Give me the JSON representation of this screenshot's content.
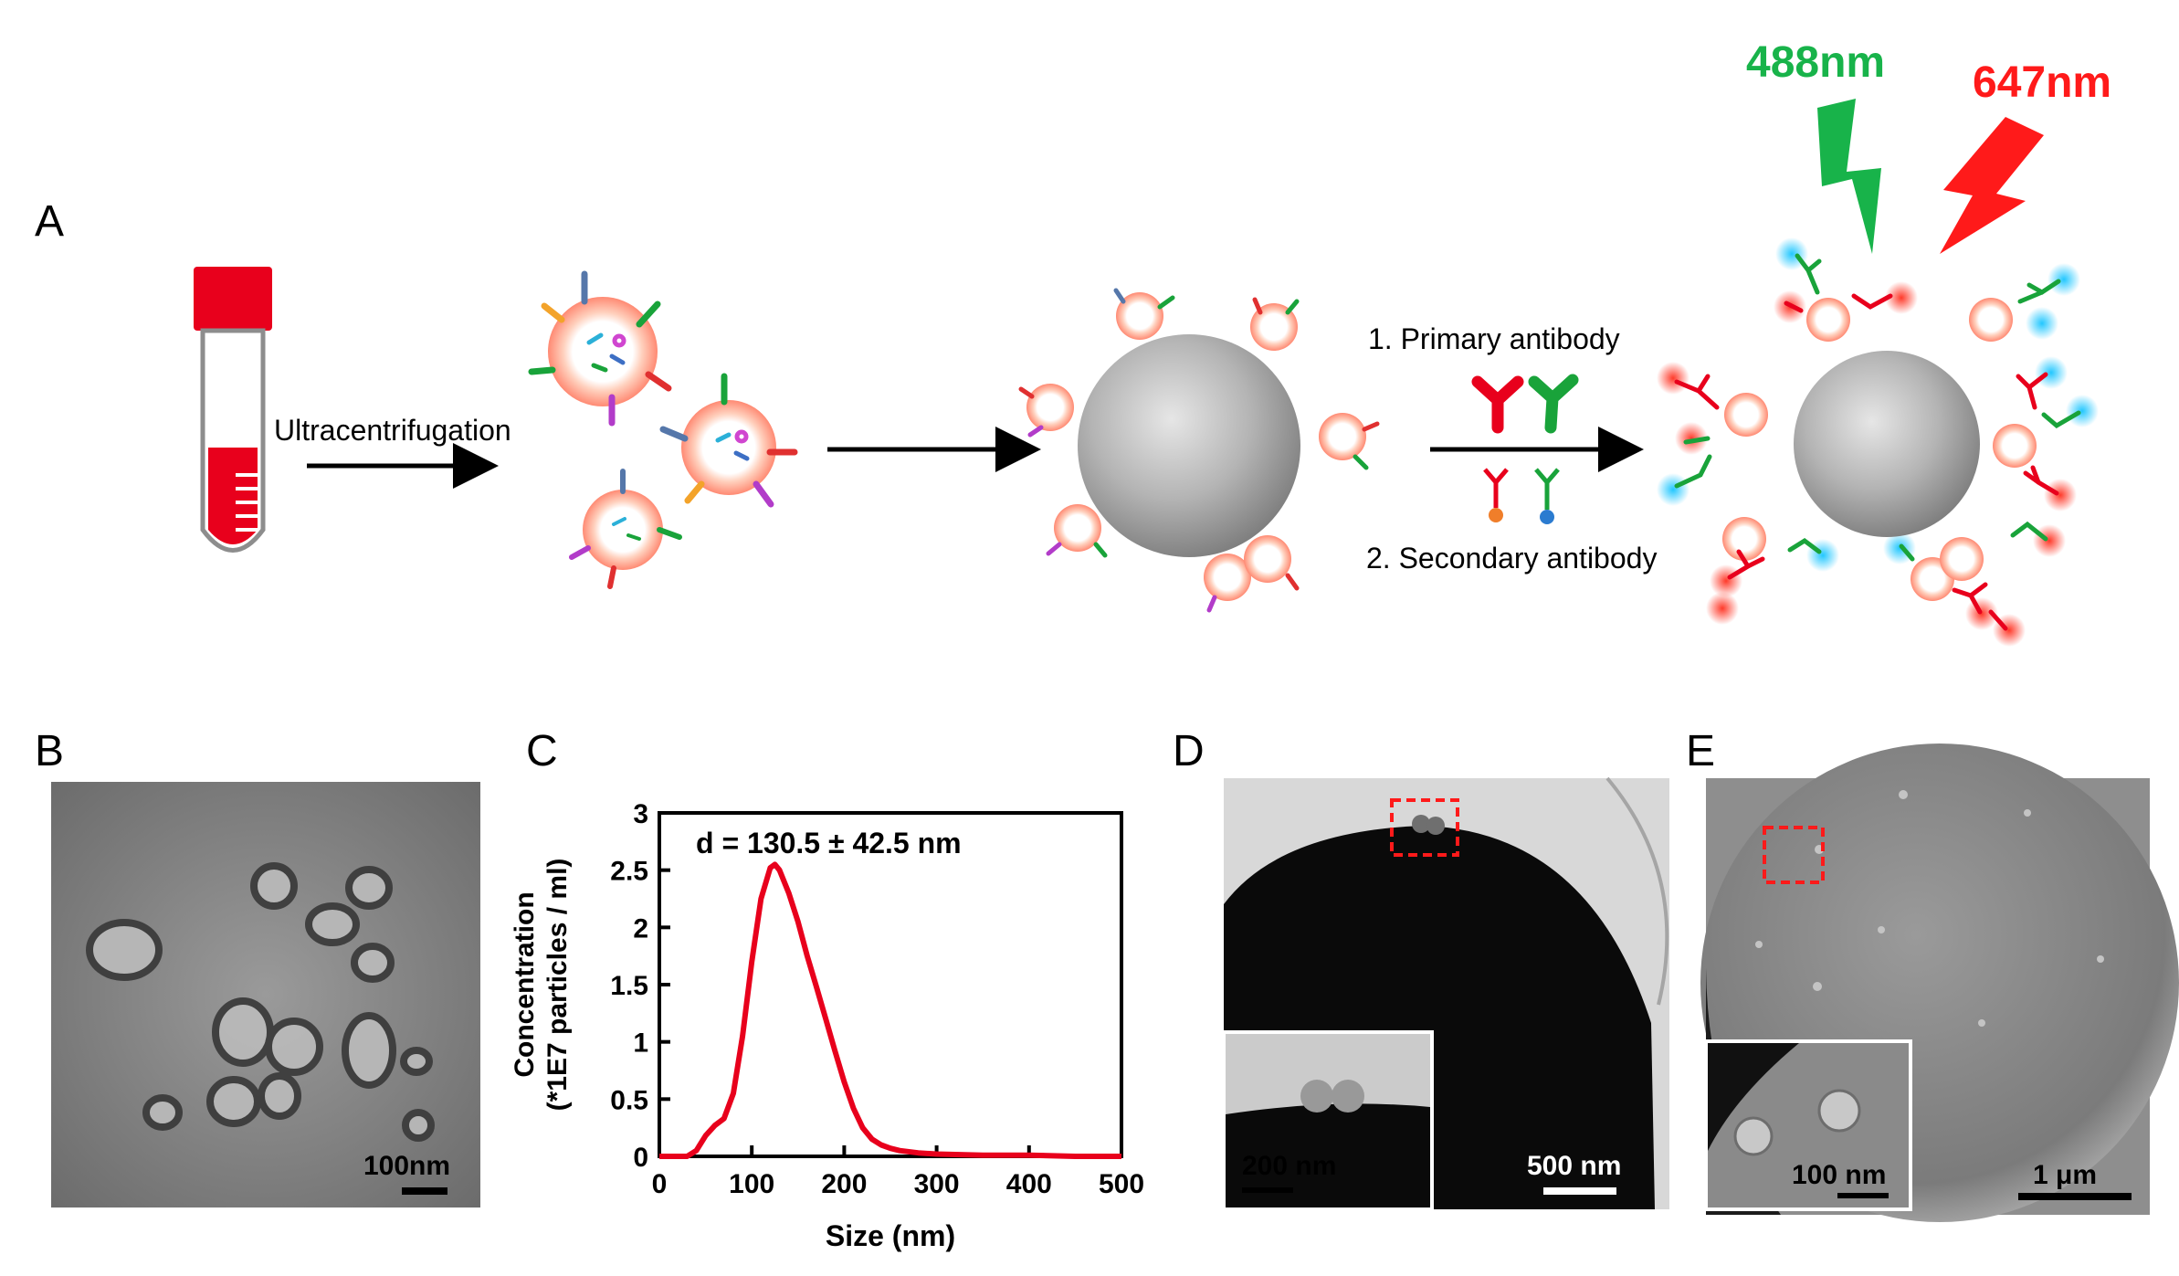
{
  "panels": {
    "A": {
      "letter": "A",
      "step1_label": "Ultracentrifugation",
      "step3_label_1": "1. Primary antibody",
      "step3_label_2": "2. Secondary antibody",
      "laser_green": "488nm",
      "laser_red": "647nm",
      "colors": {
        "tube_cap": "#e8001c",
        "blood": "#e8001c",
        "green_laser": "#18b34a",
        "red_laser": "#ff1a1a",
        "bead": "#a9a9a9"
      }
    },
    "B": {
      "letter": "B",
      "scale_bar": "100nm"
    },
    "C": {
      "letter": "C"
    },
    "D": {
      "letter": "D",
      "inset_scale": "200 nm",
      "main_scale": "500 nm"
    },
    "E": {
      "letter": "E",
      "inset_scale": "100 nm",
      "main_scale": "1 μm"
    }
  },
  "chart_data": {
    "type": "line",
    "annotation": "d = 130.5 ± 42.5 nm",
    "xlabel": "Size (nm)",
    "ylabel_line1": "Concentration",
    "ylabel_line2": "(*1E7 particles / ml)",
    "xlim": [
      0,
      500
    ],
    "ylim": [
      0,
      3
    ],
    "xticks": [
      0,
      100,
      200,
      300,
      400,
      500
    ],
    "yticks": [
      0,
      0.5,
      1,
      1.5,
      2,
      2.5,
      3
    ],
    "ytick_labels": [
      "0",
      "0.5",
      "1",
      "1.5",
      "2",
      "2.5",
      "3"
    ],
    "line_color": "#e8001c",
    "series": [
      {
        "x": [
          0,
          30,
          40,
          50,
          60,
          70,
          80,
          90,
          100,
          110,
          120,
          125,
          130,
          140,
          150,
          160,
          170,
          180,
          190,
          200,
          210,
          220,
          230,
          240,
          250,
          260,
          280,
          300,
          350,
          400,
          450,
          500
        ],
        "y": [
          0,
          0,
          0.05,
          0.18,
          0.27,
          0.33,
          0.55,
          1.05,
          1.7,
          2.25,
          2.52,
          2.55,
          2.5,
          2.3,
          2.05,
          1.75,
          1.48,
          1.2,
          0.92,
          0.65,
          0.42,
          0.25,
          0.15,
          0.1,
          0.07,
          0.05,
          0.03,
          0.02,
          0.01,
          0.01,
          0.0,
          0.0
        ]
      }
    ]
  }
}
